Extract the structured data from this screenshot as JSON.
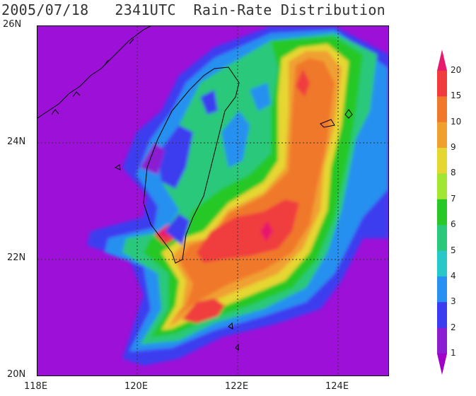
{
  "header": {
    "title": "2005/07/18   2341UTC  Rain-Rate Distribution"
  },
  "axes": {
    "lat_labels": [
      "26N",
      "24N",
      "22N",
      "20N"
    ],
    "lon_labels": [
      "118E",
      "120E",
      "122E",
      "124E"
    ],
    "lat_range": [
      20,
      26
    ],
    "lon_range": [
      118,
      125
    ]
  },
  "colorbar": {
    "levels": [
      "20",
      "15",
      "10",
      "9",
      "8",
      "7",
      "6",
      "5",
      "4",
      "3",
      "2",
      "1"
    ],
    "colors": [
      "#e8186b",
      "#f03c3c",
      "#f0782a",
      "#f0a030",
      "#e6d632",
      "#a0e632",
      "#28c828",
      "#2ac87a",
      "#28c8c8",
      "#2890f0",
      "#3c3cf0",
      "#8c1ed2",
      "#a000c8"
    ]
  },
  "colors": {
    "background": "#9c10d8",
    "coast": "#000000",
    "grid": "#333333"
  }
}
